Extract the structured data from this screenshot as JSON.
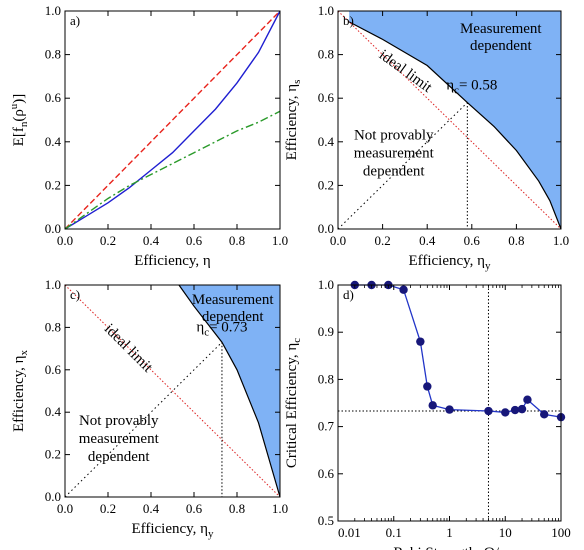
{
  "chart_data": [
    {
      "id": "a",
      "type": "line",
      "panel_label": "a)",
      "xlabel": "Efficiency, η",
      "ylabel": "E[f_n(ρ^u)]",
      "xlim": [
        0,
        1
      ],
      "ylim": [
        0,
        1
      ],
      "xticks": [
        "0.0",
        "0.2",
        "0.4",
        "0.6",
        "0.8",
        "1.0"
      ],
      "yticks": [
        "0.0",
        "0.2",
        "0.4",
        "0.6",
        "0.8",
        "1.0"
      ],
      "series": [
        {
          "style": "dashed",
          "color": "#e8231c",
          "x": [
            0,
            0.2,
            0.4,
            0.6,
            0.8,
            1.0
          ],
          "y": [
            0,
            0.2,
            0.4,
            0.6,
            0.8,
            1.0
          ]
        },
        {
          "style": "solid",
          "color": "#1f1fd1",
          "x": [
            0,
            0.1,
            0.2,
            0.3,
            0.4,
            0.5,
            0.6,
            0.7,
            0.8,
            0.9,
            1.0
          ],
          "y": [
            0,
            0.06,
            0.12,
            0.19,
            0.27,
            0.35,
            0.45,
            0.55,
            0.67,
            0.81,
            1.0
          ]
        },
        {
          "style": "dashdot",
          "color": "#2a9a2a",
          "x": [
            0,
            0.1,
            0.2,
            0.3,
            0.4,
            0.5,
            0.6,
            0.7,
            0.8,
            0.9,
            1.0
          ],
          "y": [
            0,
            0.07,
            0.14,
            0.2,
            0.25,
            0.3,
            0.35,
            0.4,
            0.45,
            0.49,
            0.54
          ]
        }
      ]
    },
    {
      "id": "b",
      "type": "area",
      "panel_label": "b)",
      "xlabel": "Efficiency, η_y",
      "ylabel": "Efficiency, η_s",
      "xlim": [
        0,
        1
      ],
      "ylim": [
        0,
        1
      ],
      "xticks": [
        "0.0",
        "0.2",
        "0.4",
        "0.6",
        "0.8",
        "1.0"
      ],
      "yticks": [
        "0.0",
        "0.2",
        "0.4",
        "0.6",
        "0.8",
        "1.0"
      ],
      "boundary": {
        "x": [
          0.05,
          0.2,
          0.4,
          0.58,
          0.7,
          0.8,
          0.9,
          0.95,
          1.0
        ],
        "y": [
          0.95,
          0.87,
          0.75,
          0.58,
          0.47,
          0.36,
          0.22,
          0.13,
          0.0
        ]
      },
      "region_color": "#7fb2f5",
      "ideal_limit": {
        "x": [
          0,
          1
        ],
        "y": [
          1,
          0
        ]
      },
      "critical": {
        "x": 0.58,
        "y": 0.58
      },
      "annotations": {
        "top_region": [
          "Measurement",
          "dependent"
        ],
        "ideal": "ideal limit",
        "critical": "η_c= 0.58",
        "lower_region": [
          "Not provably",
          "measurement",
          "dependent"
        ]
      }
    },
    {
      "id": "c",
      "type": "area",
      "panel_label": "c)",
      "xlabel": "Efficiency, η_y",
      "ylabel": "Efficiency, η_x",
      "xlim": [
        0,
        1
      ],
      "ylim": [
        0,
        1
      ],
      "xticks": [
        "0.0",
        "0.2",
        "0.4",
        "0.6",
        "0.8",
        "1.0"
      ],
      "yticks": [
        "0.0",
        "0.2",
        "0.4",
        "0.6",
        "0.8",
        "1.0"
      ],
      "boundary": {
        "x": [
          0.53,
          0.6,
          0.73,
          0.8,
          0.9,
          1.0
        ],
        "y": [
          1.0,
          0.9,
          0.73,
          0.6,
          0.35,
          0.0
        ]
      },
      "region_color": "#7fb2f5",
      "ideal_limit": {
        "x": [
          0,
          1
        ],
        "y": [
          1,
          0
        ]
      },
      "critical": {
        "x": 0.73,
        "y": 0.73
      },
      "annotations": {
        "top_region": [
          "Measurement",
          "dependent"
        ],
        "ideal": "ideal limit",
        "critical": "η_c= 0.73",
        "lower_region": [
          "Not provably",
          "measurement",
          "dependent"
        ]
      }
    },
    {
      "id": "d",
      "type": "scatter",
      "panel_label": "d)",
      "xlabel": "Rabi Strength, Ω/γ",
      "ylabel": "Critical Efficiency, η_c",
      "xscale": "log",
      "xlim": [
        0.01,
        100
      ],
      "ylim": [
        0.5,
        1.0
      ],
      "xticks": [
        "0.01",
        "0.1",
        "1",
        "10",
        "100"
      ],
      "yticks": [
        "0.5",
        "0.6",
        "0.7",
        "0.8",
        "0.9",
        "1.0"
      ],
      "series": [
        {
          "color": "#17177a",
          "x": [
            0.02,
            0.04,
            0.08,
            0.15,
            0.3,
            0.4,
            0.5,
            1.0,
            5.0,
            10,
            15,
            20,
            25,
            50,
            100
          ],
          "y": [
            1.0,
            1.0,
            1.0,
            0.99,
            0.88,
            0.785,
            0.745,
            0.736,
            0.733,
            0.73,
            0.735,
            0.737,
            0.757,
            0.726,
            0.72
          ]
        }
      ],
      "reference_lines": {
        "x": 5.0,
        "y": 0.733
      }
    }
  ]
}
